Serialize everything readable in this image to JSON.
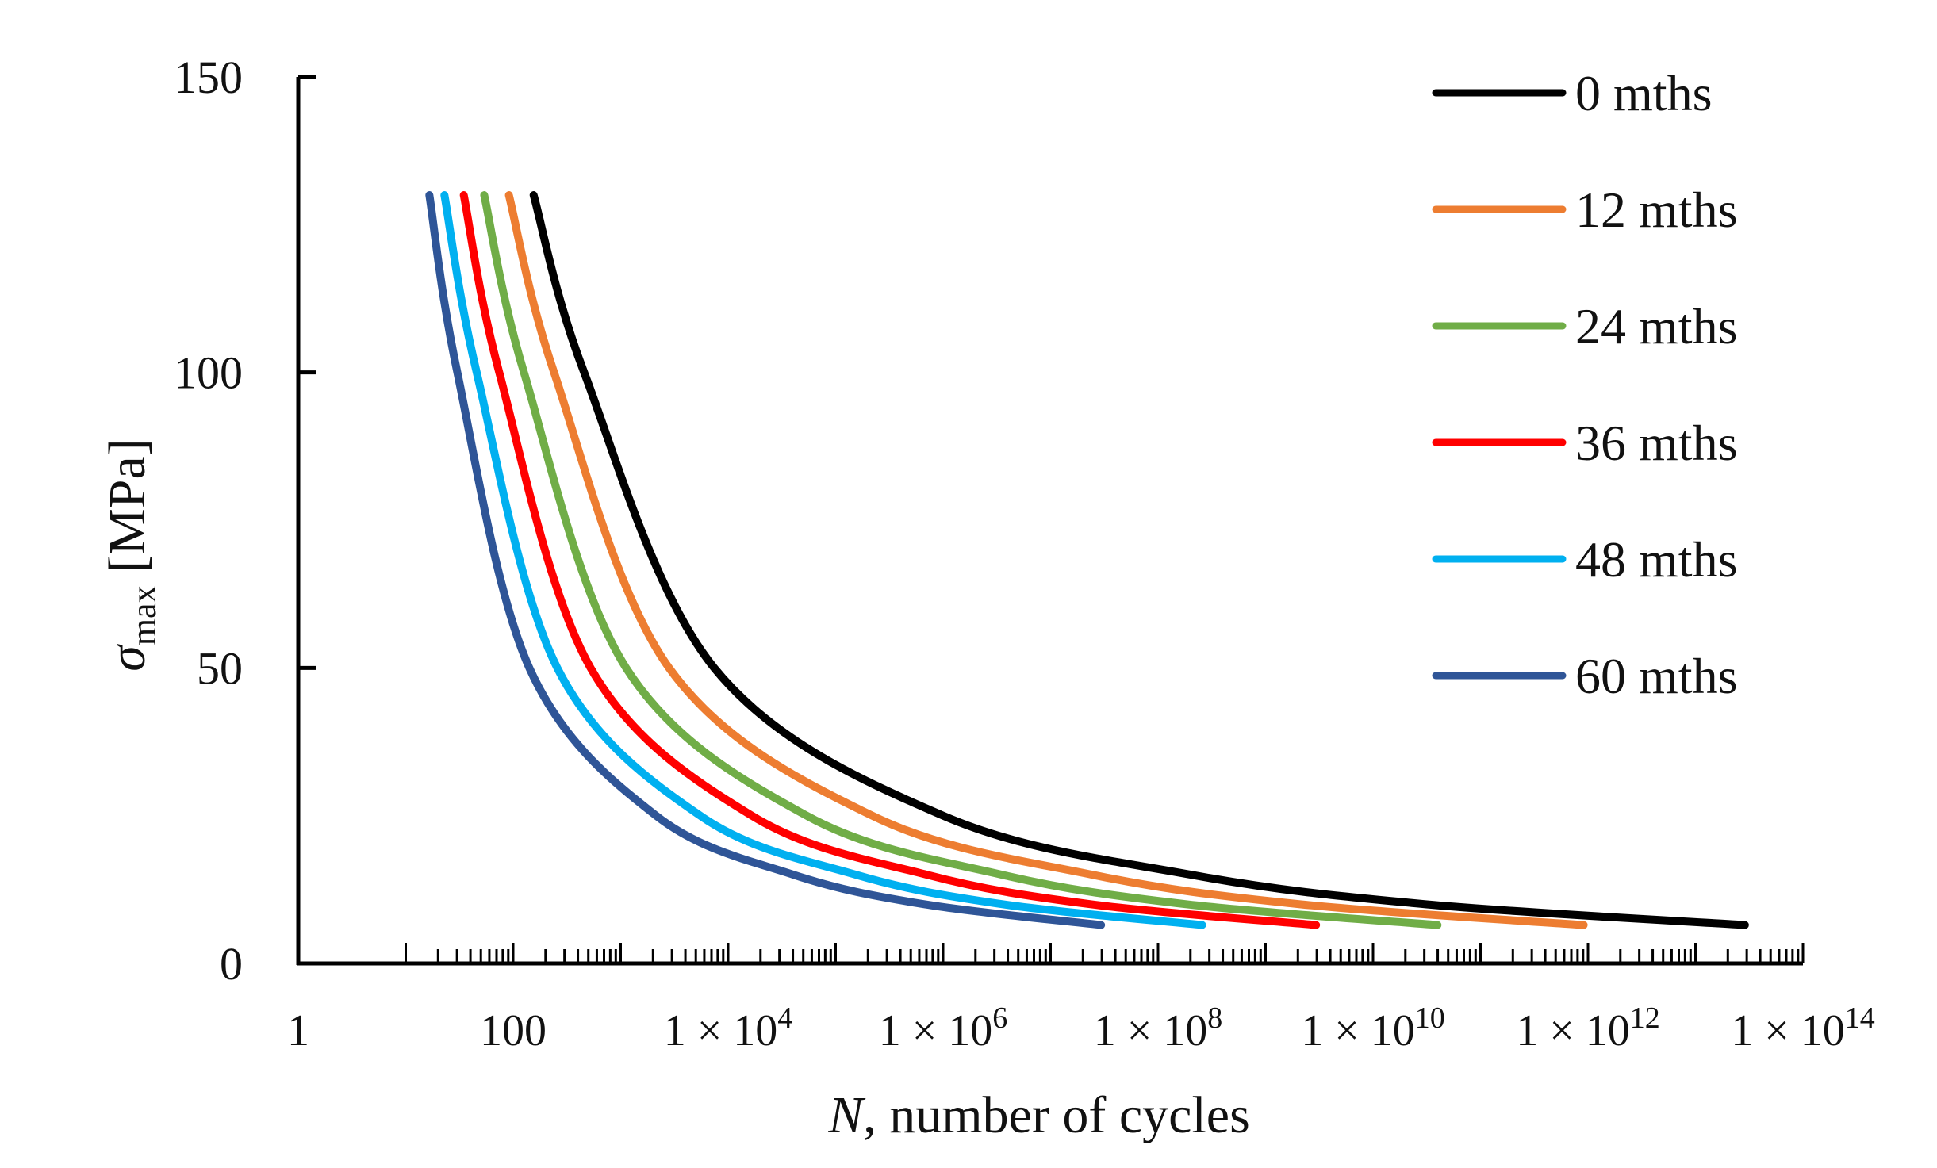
{
  "chart_data": {
    "type": "line",
    "title": "",
    "xlabel_italic": "N",
    "xlabel_rest": ", number of cycles",
    "ylabel_symbol": "σ",
    "ylabel_sub": "max",
    "ylabel_unit": " [MPa]",
    "x_scale": "log10",
    "xlim_log10": [
      0,
      14
    ],
    "ylim": [
      0,
      150
    ],
    "y_ticks": [
      0,
      50,
      100,
      150
    ],
    "x_tick_labels": [
      {
        "exp": 0,
        "base": "1",
        "sup": ""
      },
      {
        "exp": 2,
        "base": "100",
        "sup": ""
      },
      {
        "exp": 4,
        "base": "1 × 10",
        "sup": "4"
      },
      {
        "exp": 6,
        "base": "1 × 10",
        "sup": "6"
      },
      {
        "exp": 8,
        "base": "1 × 10",
        "sup": "8"
      },
      {
        "exp": 10,
        "base": "1 × 10",
        "sup": "10"
      },
      {
        "exp": 12,
        "base": "1 × 10",
        "sup": "12"
      },
      {
        "exp": 14,
        "base": "1 × 10",
        "sup": "14"
      }
    ],
    "grid": false,
    "legend_placement": "top-right",
    "sigma_values": [
      130,
      100,
      50,
      25,
      15,
      10,
      6.5
    ],
    "series": [
      {
        "name": "0 mths",
        "color": "#000000",
        "log10_N": [
          2.19,
          2.66,
          3.87,
          6.0,
          8.31,
          10.5,
          13.46
        ]
      },
      {
        "name": "12 mths",
        "color": "#ED7D31",
        "log10_N": [
          1.96,
          2.38,
          3.45,
          5.34,
          7.39,
          9.33,
          11.96
        ]
      },
      {
        "name": "24 mths",
        "color": "#70AD47",
        "log10_N": [
          1.73,
          2.1,
          3.05,
          4.73,
          6.55,
          8.27,
          10.6
        ]
      },
      {
        "name": "36 mths",
        "color": "#FF0000",
        "log10_N": [
          1.54,
          1.87,
          2.72,
          4.22,
          5.85,
          7.38,
          9.47
        ]
      },
      {
        "name": "48 mths",
        "color": "#00B0F0",
        "log10_N": [
          1.36,
          1.66,
          2.41,
          3.74,
          5.19,
          6.56,
          8.41
        ]
      },
      {
        "name": "60 mths",
        "color": "#2F5597",
        "log10_N": [
          1.22,
          1.48,
          2.15,
          3.33,
          4.61,
          5.83,
          7.47
        ]
      }
    ]
  }
}
